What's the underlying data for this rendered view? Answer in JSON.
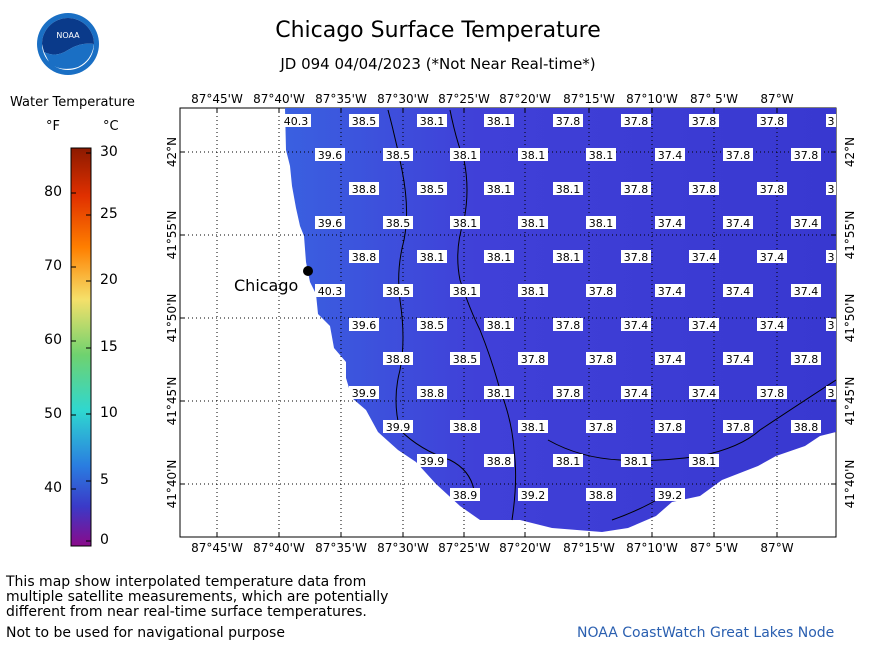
{
  "header": {
    "title": "Chicago Surface Temperature",
    "subtitle": "JD 094 04/04/2023 (*Not Near Real-time*)"
  },
  "logo": {
    "text": "NOAA",
    "colors": {
      "ring": "#1a6fc4",
      "bird": "#ffffff",
      "sky": "#0a3a8a"
    }
  },
  "legend": {
    "title": "Water Temperature",
    "unit_f": "°F",
    "unit_c": "°C",
    "f_ticks": [
      "80",
      "70",
      "60",
      "50",
      "40"
    ],
    "c_ticks": [
      "30",
      "25",
      "20",
      "15",
      "10",
      "5",
      "0"
    ]
  },
  "map": {
    "lon_labels": [
      "87°45'W",
      "87°40'W",
      "87°35'W",
      "87°30'W",
      "87°25'W",
      "87°20'W",
      "87°15'W",
      "87°10'W",
      "87° 5'W",
      "87°W"
    ],
    "lat_labels": [
      "42°N",
      "41°55'N",
      "41°50'N",
      "41°45'N",
      "41°40'N"
    ],
    "city_label": "Chicago",
    "water_color": "#3d3dd8",
    "temperature_rows": [
      [
        "40.3",
        "38.5",
        "38.1",
        "38.1",
        "37.8",
        "37.8",
        "37.8",
        "37.8",
        "3"
      ],
      [
        "39.6",
        "38.5",
        "38.1",
        "38.1",
        "38.1",
        "37.4",
        "37.8",
        "37.8"
      ],
      [
        "38.8",
        "38.5",
        "38.1",
        "38.1",
        "37.8",
        "37.8",
        "37.8",
        "3"
      ],
      [
        "39.6",
        "38.5",
        "38.1",
        "38.1",
        "38.1",
        "37.4",
        "37.4",
        "37.4"
      ],
      [
        "38.8",
        "38.1",
        "38.1",
        "38.1",
        "37.8",
        "37.4",
        "37.4",
        "3"
      ],
      [
        "40.3",
        "38.5",
        "38.1",
        "38.1",
        "37.8",
        "37.4",
        "37.4",
        "37.4"
      ],
      [
        "39.6",
        "38.5",
        "38.1",
        "37.8",
        "37.4",
        "37.4",
        "37.4",
        "3"
      ],
      [
        "38.8",
        "38.5",
        "37.8",
        "37.8",
        "37.4",
        "37.4",
        "37.8"
      ],
      [
        "39.9",
        "38.8",
        "38.1",
        "37.8",
        "37.4",
        "37.4",
        "37.8",
        "3"
      ],
      [
        "39.9",
        "38.8",
        "38.1",
        "37.8",
        "37.8",
        "37.8",
        "38.8"
      ],
      [
        "39.9",
        "38.8",
        "38.1",
        "38.1",
        "38.1"
      ],
      [
        "38.9",
        "39.2",
        "38.8",
        "39.2"
      ]
    ]
  },
  "footer": {
    "note_lines": [
      "This map show interpolated temperature data from",
      "multiple satellite measurements, which are potentially",
      "different from near real-time surface temperatures."
    ],
    "disclaimer": "Not to be used for navigational purpose",
    "credit": "NOAA CoastWatch Great Lakes Node",
    "credit_color": "#2a5fb0"
  }
}
